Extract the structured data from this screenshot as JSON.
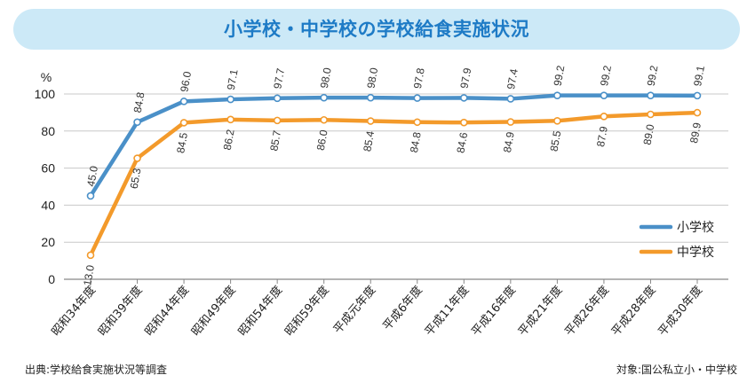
{
  "title": "小学校・中学校の学校給食実施状況",
  "footer": {
    "source": "出典:学校給食実施状況等調査",
    "target": "対象:国公私立小・中学校"
  },
  "colors": {
    "title_bg": "#cce9f7",
    "title_text": "#1e7bc6",
    "elementary": "#4a90c8",
    "junior_high": "#f39a2b"
  },
  "chart_data": {
    "type": "line",
    "title": "小学校・中学校の学校給食実施状況",
    "ylabel": "%",
    "xlabel": "",
    "ylim": [
      0,
      100
    ],
    "yticks": [
      "0",
      "20",
      "40",
      "60",
      "80",
      "100"
    ],
    "grid": true,
    "legend_position": "right",
    "categories": [
      "昭和34年度",
      "昭和39年度",
      "昭和44年度",
      "昭和49年度",
      "昭和54年度",
      "昭和59年度",
      "平成元年度",
      "平成6年度",
      "平成11年度",
      "平成16年度",
      "平成21年度",
      "平成26年度",
      "平成28年度",
      "平成30年度"
    ],
    "series": [
      {
        "name": "小学校",
        "color": "#4a90c8",
        "values": [
          45.0,
          84.8,
          96.0,
          97.1,
          97.7,
          98.0,
          98.0,
          97.8,
          97.9,
          97.4,
          99.2,
          99.2,
          99.2,
          99.1
        ],
        "labels": [
          "45.0",
          "84.8",
          "96.0",
          "97.1",
          "97.7",
          "98.0",
          "98.0",
          "97.8",
          "97.9",
          "97.4",
          "99.2",
          "99.2",
          "99.2",
          "99.1"
        ]
      },
      {
        "name": "中学校",
        "color": "#f39a2b",
        "values": [
          13.0,
          65.3,
          84.5,
          86.2,
          85.7,
          86.0,
          85.4,
          84.8,
          84.6,
          84.9,
          85.5,
          87.9,
          89.0,
          89.9
        ],
        "labels": [
          "13.0",
          "65.3",
          "84.5",
          "86.2",
          "85.7",
          "86.0",
          "85.4",
          "84.8",
          "84.6",
          "84.9",
          "85.5",
          "87.9",
          "89.0",
          "89.9"
        ]
      }
    ]
  }
}
